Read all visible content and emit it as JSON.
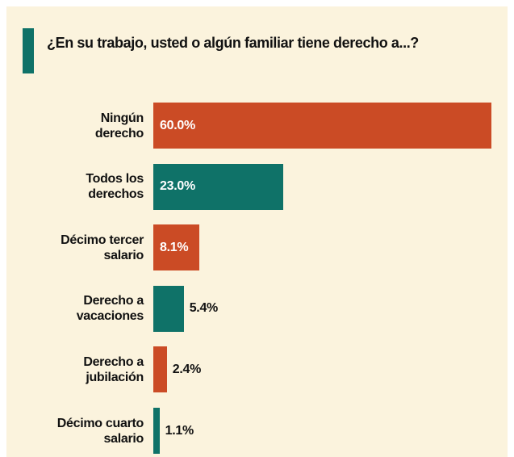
{
  "chart_data": {
    "type": "bar",
    "orientation": "horizontal",
    "title": "¿En su trabajo, usted o algún familiar tiene derecho a...?",
    "categories": [
      "Ningún\nderecho",
      "Todos los\nderechos",
      "Décimo tercer\nsalario",
      "Derecho a\nvacaciones",
      "Derecho a\njubilación",
      "Décimo cuarto\nsalario"
    ],
    "values": [
      60.0,
      23.0,
      8.1,
      5.4,
      2.4,
      1.1
    ],
    "value_labels": [
      "60.0%",
      "23.0%",
      "8.1%",
      "5.4%",
      "2.4%",
      "1.1%"
    ],
    "colors": [
      "#cb4b25",
      "#0f7268",
      "#cb4b25",
      "#0f7268",
      "#cb4b25",
      "#0f7268"
    ]
  }
}
